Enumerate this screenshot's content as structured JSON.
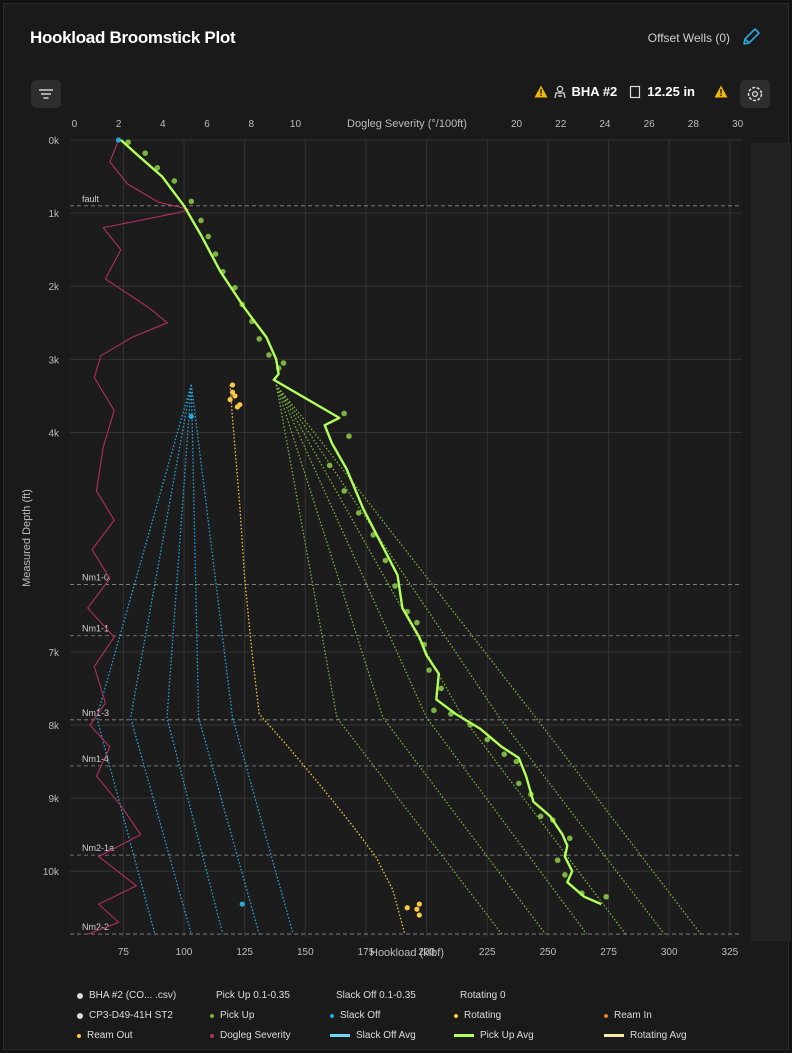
{
  "header": {
    "title": "Hookload Broomstick Plot",
    "offset_wells": "Offset Wells (0)"
  },
  "toolbar": {
    "bha_label": "BHA #2",
    "bit_size": "12.25 in"
  },
  "colors": {
    "pickup": "#7cb342",
    "pickup_avg": "#b2ff59",
    "slackoff": "#29a8e0",
    "rotating": "#f9c846",
    "dogleg": "#b03060",
    "ream_in": "#f07a2a",
    "slackoff_avg": "#6fd6f4",
    "rotating_avg": "#fce8a8"
  },
  "chart_data": {
    "type": "scatter",
    "xlabel": "Hookload (klbf)",
    "x2label": "Dogleg Severity (°/100ft)",
    "ylabel": "Measured Depth (ft)",
    "xlim": [
      53,
      330
    ],
    "x2lim": [
      -0.2,
      30.2
    ],
    "ylim": [
      0,
      10900
    ],
    "y_reversed": true,
    "xticks": [
      "75",
      "100",
      "125",
      "150",
      "175",
      "200",
      "225",
      "250",
      "275",
      "300",
      "325"
    ],
    "x2ticks": [
      "0",
      "2",
      "4",
      "6",
      "8",
      "10",
      "12",
      "14",
      "16",
      "18",
      "20",
      "22",
      "24",
      "26",
      "28",
      "30"
    ],
    "yticks": [
      {
        "v": 0,
        "label": "0k"
      },
      {
        "v": 1000,
        "label": "1k"
      },
      {
        "v": 2000,
        "label": "2k"
      },
      {
        "v": 3000,
        "label": "3k"
      },
      {
        "v": 4000,
        "label": "4k"
      },
      {
        "v": 7000,
        "label": "7k"
      },
      {
        "v": 8000,
        "label": "8k"
      },
      {
        "v": 9000,
        "label": "9k"
      },
      {
        "v": 10000,
        "label": "10k"
      }
    ],
    "formations": [
      {
        "name": "fault",
        "depth": 900
      },
      {
        "name": "Nm1-0",
        "depth": 6080
      },
      {
        "name": "Nm1-1",
        "depth": 6780
      },
      {
        "name": "Nm1-3",
        "depth": 7930
      },
      {
        "name": "Nm1-4",
        "depth": 8560
      },
      {
        "name": "Nm2-1a",
        "depth": 9780
      },
      {
        "name": "Nm2-2",
        "depth": 10860
      }
    ],
    "pickup_avg": [
      [
        74,
        0
      ],
      [
        80,
        180
      ],
      [
        91,
        500
      ],
      [
        100,
        900
      ],
      [
        107,
        1300
      ],
      [
        115,
        1800
      ],
      [
        125,
        2300
      ],
      [
        134,
        2700
      ],
      [
        138,
        3000
      ],
      [
        139,
        3200
      ],
      [
        137,
        3280
      ],
      [
        164,
        3800
      ],
      [
        158,
        3900
      ],
      [
        161,
        4150
      ],
      [
        167,
        4500
      ],
      [
        174,
        5050
      ],
      [
        181,
        5500
      ],
      [
        188,
        5950
      ],
      [
        190,
        6400
      ],
      [
        197,
        6800
      ],
      [
        200,
        7050
      ],
      [
        205,
        7300
      ],
      [
        204,
        7650
      ],
      [
        212,
        7850
      ],
      [
        222,
        8050
      ],
      [
        231,
        8300
      ],
      [
        238,
        8450
      ],
      [
        241,
        8700
      ],
      [
        244,
        9050
      ],
      [
        251,
        9250
      ],
      [
        256,
        9500
      ],
      [
        258,
        9650
      ],
      [
        257,
        9800
      ],
      [
        260,
        10000
      ],
      [
        258,
        10150
      ],
      [
        265,
        10350
      ],
      [
        272,
        10450
      ]
    ],
    "pickup_scatter": [
      [
        77,
        30
      ],
      [
        84,
        180
      ],
      [
        89,
        380
      ],
      [
        96,
        560
      ],
      [
        103,
        840
      ],
      [
        107,
        1100
      ],
      [
        110,
        1320
      ],
      [
        113,
        1560
      ],
      [
        116,
        1800
      ],
      [
        121,
        2020
      ],
      [
        124,
        2250
      ],
      [
        128,
        2480
      ],
      [
        131,
        2720
      ],
      [
        135,
        2940
      ],
      [
        139,
        3120
      ],
      [
        141,
        3050
      ],
      [
        166,
        3740
      ],
      [
        168,
        4050
      ],
      [
        160,
        4450
      ],
      [
        166,
        4800
      ],
      [
        172,
        5100
      ],
      [
        178,
        5400
      ],
      [
        183,
        5750
      ],
      [
        187,
        6100
      ],
      [
        192,
        6450
      ],
      [
        196,
        6600
      ],
      [
        199,
        6900
      ],
      [
        201,
        7250
      ],
      [
        206,
        7500
      ],
      [
        203,
        7800
      ],
      [
        210,
        7850
      ],
      [
        218,
        8000
      ],
      [
        225,
        8200
      ],
      [
        232,
        8400
      ],
      [
        237,
        8500
      ],
      [
        238,
        8800
      ],
      [
        243,
        8950
      ],
      [
        247,
        9250
      ],
      [
        252,
        9300
      ],
      [
        259,
        9550
      ],
      [
        254,
        9850
      ],
      [
        257,
        10050
      ],
      [
        264,
        10300
      ],
      [
        274,
        10350
      ]
    ],
    "slackoff_scatter": [
      [
        73,
        0
      ],
      [
        103,
        3780
      ],
      [
        124,
        10450
      ]
    ],
    "rotating_scatter": [
      [
        120,
        3350
      ],
      [
        121,
        3500
      ],
      [
        122,
        3650
      ],
      [
        119,
        3550
      ],
      [
        120,
        3450
      ],
      [
        123,
        3620
      ],
      [
        192,
        10500
      ],
      [
        196,
        10520
      ],
      [
        197,
        10450
      ],
      [
        197,
        10600
      ]
    ],
    "rotating_curve": [
      [
        119,
        3350
      ],
      [
        120,
        3800
      ],
      [
        123,
        5000
      ],
      [
        125,
        6000
      ],
      [
        128,
        7000
      ],
      [
        131,
        7850
      ],
      [
        143,
        8300
      ],
      [
        158,
        8900
      ],
      [
        170,
        9400
      ],
      [
        179,
        9800
      ],
      [
        186,
        10250
      ],
      [
        191,
        10860
      ]
    ],
    "pickup_curves": {
      "top": 3350,
      "apex": [
        [
          138,
          3350
        ],
        [
          140,
          3400
        ]
      ],
      "bottoms": [
        231,
        249,
        266,
        282,
        298,
        313
      ],
      "knees": [
        [
          163,
          7900
        ],
        [
          182,
          7900
        ],
        [
          200,
          7900
        ],
        [
          215,
          7900
        ],
        [
          230,
          7900
        ],
        [
          245,
          7900
        ]
      ]
    },
    "slackoff_curves": {
      "apex_x": 103,
      "top": 3350,
      "bottoms": [
        88,
        103,
        116,
        131,
        145
      ],
      "knees": [
        [
          64,
          7900
        ],
        [
          78,
          7900
        ],
        [
          93,
          7900
        ],
        [
          106,
          7900
        ],
        [
          120,
          7900
        ]
      ]
    },
    "dogleg_trace": [
      [
        2,
        0
      ],
      [
        1.6,
        300
      ],
      [
        2.4,
        600
      ],
      [
        3.8,
        850
      ],
      [
        5.2,
        950
      ],
      [
        4.6,
        1000
      ],
      [
        1.3,
        1200
      ],
      [
        2.1,
        1500
      ],
      [
        1.4,
        1900
      ],
      [
        3.4,
        2300
      ],
      [
        4.2,
        2500
      ],
      [
        2.6,
        2700
      ],
      [
        1.2,
        2950
      ],
      [
        0.9,
        3250
      ],
      [
        1.8,
        3700
      ],
      [
        1.3,
        4200
      ],
      [
        1.0,
        4800
      ],
      [
        1.8,
        5200
      ],
      [
        0.8,
        5600
      ],
      [
        1.6,
        6000
      ],
      [
        0.6,
        6400
      ],
      [
        1.8,
        6800
      ],
      [
        0.9,
        7200
      ],
      [
        1.4,
        7700
      ],
      [
        0.7,
        8000
      ],
      [
        1.6,
        8300
      ],
      [
        1.0,
        8700
      ],
      [
        2.1,
        9100
      ],
      [
        3.0,
        9500
      ],
      [
        1.1,
        9800
      ],
      [
        2.8,
        10200
      ],
      [
        1.1,
        10450
      ],
      [
        2.0,
        10700
      ],
      [
        0.6,
        10860
      ]
    ]
  },
  "legend": [
    {
      "label": "BHA #2 (CO... .csv)",
      "kind": "dot",
      "color": "#d8d8d8"
    },
    {
      "label": "Pick Up 0.1-0.35",
      "kind": "dash",
      "color": "#7cb342"
    },
    {
      "label": "Slack Off 0.1-0.35",
      "kind": "dash",
      "color": "#29a8e0"
    },
    {
      "label": "Rotating 0",
      "kind": "dash",
      "color": "#f9c846"
    },
    {
      "label": "CP3-D49-41H ST2",
      "kind": "dot",
      "color": "#d8d8d8"
    },
    {
      "label": "Pick Up",
      "kind": "dotsm",
      "color": "#7cb342"
    },
    {
      "label": "Slack Off",
      "kind": "dotsm",
      "color": "#29a8e0"
    },
    {
      "label": "Rotating",
      "kind": "dotsm",
      "color": "#f9c846"
    },
    {
      "label": "Ream In",
      "kind": "dotsm",
      "color": "#f07a2a"
    },
    {
      "label": "Ream Out",
      "kind": "dotsm",
      "color": "#f9c846"
    },
    {
      "label": "Dogleg Severity",
      "kind": "dotsm",
      "color": "#b03060"
    },
    {
      "label": "Slack Off Avg",
      "kind": "solid",
      "color": "#6fd6f4"
    },
    {
      "label": "Pick Up Avg",
      "kind": "solid",
      "color": "#b2ff59"
    },
    {
      "label": "Rotating Avg",
      "kind": "solid",
      "color": "#fce8a8"
    }
  ]
}
